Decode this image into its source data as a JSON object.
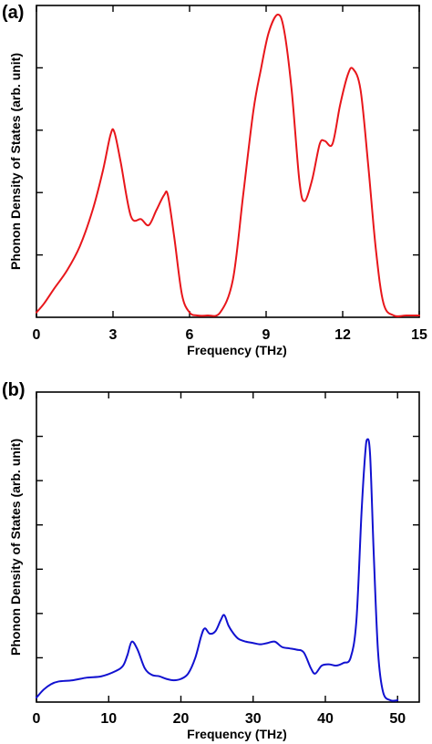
{
  "chart_data": [
    {
      "type": "line",
      "panel_label": "(a)",
      "xlabel": "Frequency (THz)",
      "ylabel": "Phonon Density of States (arb. unit)",
      "xlim": [
        0,
        15
      ],
      "ylim": [
        0,
        1
      ],
      "xticks": [
        0,
        3,
        6,
        9,
        12,
        15
      ],
      "xtick_labels": [
        "0",
        "3",
        "6",
        "9",
        "12",
        "15"
      ],
      "ytick_count": 4,
      "grid": false,
      "legend": "none",
      "series": [
        {
          "color": "#e8161b",
          "x": [
            0,
            0.3,
            0.7,
            1.2,
            1.7,
            2.2,
            2.6,
            2.9,
            3.05,
            3.3,
            3.7,
            4.1,
            4.4,
            4.7,
            5.0,
            5.15,
            5.4,
            5.7,
            6.0,
            6.3,
            6.7,
            7.2,
            7.7,
            8.1,
            8.5,
            8.8,
            9.1,
            9.45,
            9.7,
            10.0,
            10.3,
            10.5,
            10.8,
            11.1,
            11.3,
            11.6,
            11.9,
            12.2,
            12.4,
            12.7,
            13.0,
            13.3,
            13.6,
            14.0,
            14.5,
            15.0
          ],
          "y": [
            0.01,
            0.04,
            0.09,
            0.15,
            0.23,
            0.35,
            0.48,
            0.6,
            0.61,
            0.51,
            0.33,
            0.32,
            0.3,
            0.35,
            0.4,
            0.4,
            0.26,
            0.07,
            0.01,
            0.0,
            0.0,
            0.01,
            0.12,
            0.4,
            0.68,
            0.82,
            0.94,
            1.0,
            0.95,
            0.75,
            0.45,
            0.38,
            0.45,
            0.57,
            0.58,
            0.57,
            0.7,
            0.8,
            0.82,
            0.75,
            0.5,
            0.22,
            0.04,
            0.0,
            0.0,
            0.0
          ]
        }
      ]
    },
    {
      "type": "line",
      "panel_label": "(b)",
      "xlabel": "Frequency (THz)",
      "ylabel": "Phonon Density of States (arb. unit)",
      "xlim": [
        0,
        53
      ],
      "ylim": [
        0,
        1
      ],
      "xticks": [
        0,
        10,
        20,
        30,
        40,
        50
      ],
      "xtick_labels": [
        "0",
        "10",
        "20",
        "30",
        "40",
        "50"
      ],
      "ytick_count": 6,
      "grid": false,
      "legend": "none",
      "series": [
        {
          "color": "#1111d0",
          "x": [
            0,
            1,
            2,
            3,
            5,
            7,
            9,
            11,
            12,
            12.6,
            13.2,
            14,
            15,
            16,
            17,
            18,
            19,
            20,
            21,
            22,
            22.8,
            23.3,
            24,
            24.8,
            25.5,
            26,
            26.6,
            27.3,
            28,
            29,
            30,
            31,
            32,
            33,
            34,
            35,
            36,
            37,
            38,
            38.6,
            39.5,
            40.5,
            41.5,
            42.5,
            43.5,
            44.3,
            45,
            45.5,
            45.8,
            46.2,
            46.7,
            47.3,
            48,
            49,
            50
          ],
          "y": [
            0.01,
            0.04,
            0.06,
            0.07,
            0.075,
            0.085,
            0.09,
            0.11,
            0.13,
            0.17,
            0.22,
            0.19,
            0.12,
            0.095,
            0.09,
            0.08,
            0.075,
            0.08,
            0.1,
            0.16,
            0.24,
            0.27,
            0.25,
            0.26,
            0.3,
            0.32,
            0.28,
            0.25,
            0.23,
            0.22,
            0.215,
            0.21,
            0.215,
            0.22,
            0.2,
            0.195,
            0.19,
            0.18,
            0.12,
            0.1,
            0.13,
            0.135,
            0.13,
            0.14,
            0.16,
            0.3,
            0.7,
            0.92,
            0.98,
            0.92,
            0.55,
            0.18,
            0.03,
            0.0,
            0.0
          ]
        }
      ]
    }
  ]
}
